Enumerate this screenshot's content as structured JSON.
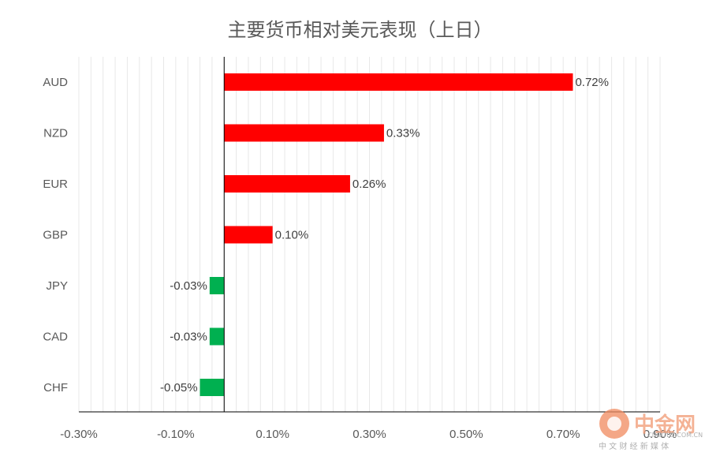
{
  "chart_data": {
    "type": "bar",
    "orientation": "horizontal",
    "title": "主要货币相对美元表现（上日）",
    "categories": [
      "AUD",
      "NZD",
      "EUR",
      "GBP",
      "JPY",
      "CAD",
      "CHF"
    ],
    "values": [
      0.72,
      0.33,
      0.26,
      0.1,
      -0.03,
      -0.03,
      -0.05
    ],
    "data_labels": [
      "0.72%",
      "0.33%",
      "0.26%",
      "0.10%",
      "-0.03%",
      "-0.03%",
      "-0.05%"
    ],
    "xlim": [
      -0.3,
      0.9
    ],
    "x_ticks": [
      -0.3,
      -0.1,
      0.1,
      0.3,
      0.5,
      0.7,
      0.9
    ],
    "x_tick_labels": [
      "-0.30%",
      "-0.10%",
      "0.10%",
      "0.30%",
      "0.50%",
      "0.70%",
      "0.90%"
    ],
    "grid": true,
    "colors": {
      "positive": "#ff0000",
      "negative": "#00b050",
      "grid": "#e8e8e8",
      "axis": "#000000"
    }
  },
  "watermark": {
    "brand": "中金网",
    "url": "CNGOLD.COM.CN",
    "tagline": "中 文 财 经 新 媒 体"
  }
}
